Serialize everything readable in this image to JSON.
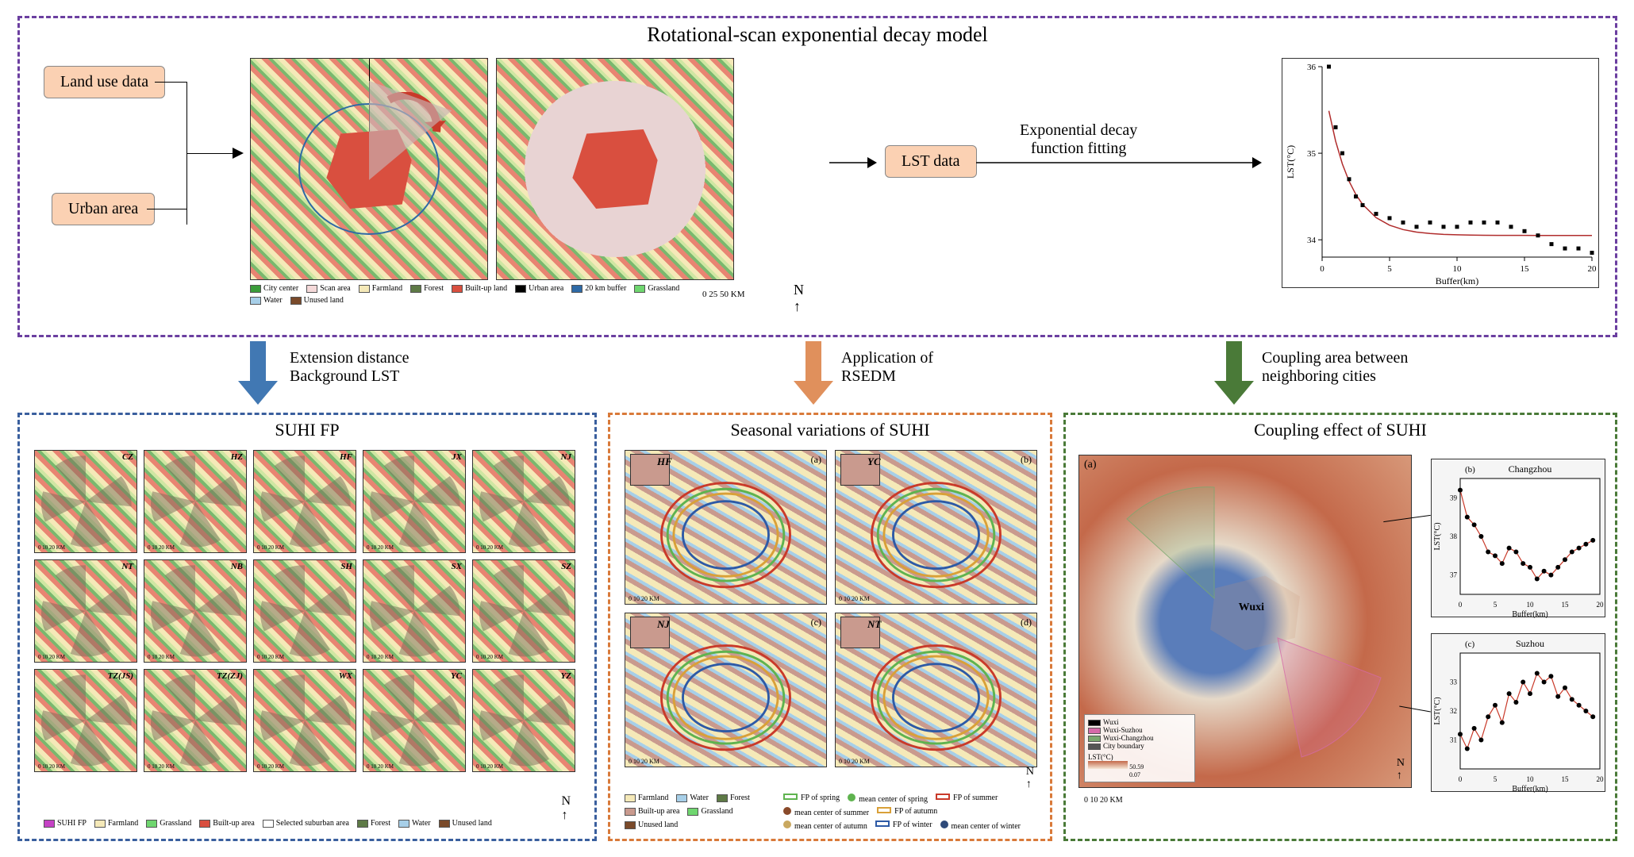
{
  "topPanel": {
    "title": "Rotational-scan exponential decay model",
    "border_color": "#6b3fa0",
    "inputs": {
      "landuse": "Land use data",
      "urban": "Urban area"
    },
    "lst_box": "LST data",
    "fitting_label": "Exponential decay\nfunction fitting",
    "maps_legend": {
      "items": [
        "City center",
        "Scan area",
        "Farmland",
        "Forest",
        "Built-up land",
        "Urban area",
        "20 km buffer",
        "Grassland",
        "Water",
        "Unused land"
      ],
      "colors": [
        "#3a9c3a",
        "#f5d9d9",
        "#f5e9b8",
        "#5e7a46",
        "#d94f3f",
        "#000000",
        "#2e6aa6",
        "#6fd66f",
        "#a7cfe8",
        "#7a4a2a"
      ],
      "scale": "0    25    50 KM"
    },
    "chart": {
      "type": "scatter-line",
      "xlabel": "Buffer(km)",
      "ylabel": "LST(°C)",
      "xlim": [
        0,
        20
      ],
      "ylim": [
        33.8,
        36.0
      ],
      "xticks": [
        0,
        5,
        10,
        15,
        20
      ],
      "yticks": [
        34,
        35,
        36
      ],
      "points_x": [
        0.5,
        1,
        1.5,
        2,
        2.5,
        3,
        4,
        5,
        6,
        7,
        8,
        9,
        10,
        11,
        12,
        13,
        14,
        15,
        16,
        17,
        18,
        19,
        20
      ],
      "points_y": [
        36.0,
        35.3,
        35.0,
        34.7,
        34.5,
        34.4,
        34.3,
        34.25,
        34.2,
        34.15,
        34.2,
        34.15,
        34.15,
        34.2,
        34.2,
        34.2,
        34.15,
        34.1,
        34.05,
        33.95,
        33.9,
        33.9,
        33.85
      ],
      "marker_color": "#000000",
      "marker_size": 5,
      "marker_style": "square",
      "line_color": "#b02c2c",
      "line_width": 1.5,
      "background_color": "#ffffff",
      "label_fontsize": 12
    }
  },
  "arrows": {
    "left": {
      "color": "#4178b3",
      "labels": [
        "Extension distance",
        "Background LST"
      ]
    },
    "mid": {
      "color": "#e0905c",
      "labels": [
        "Application of",
        "RSEDM"
      ]
    },
    "right": {
      "color": "#4a7a38",
      "labels": [
        "Coupling area between",
        "neighboring cities"
      ]
    }
  },
  "suhiFP": {
    "title": "SUHI FP",
    "border_color": "#3a5f9e",
    "cities": [
      "CZ",
      "HZ",
      "HF",
      "JX",
      "NJ",
      "NT",
      "NB",
      "SH",
      "SX",
      "SZ",
      "TZ(JS)",
      "TZ(ZJ)",
      "WX",
      "YC",
      "YZ"
    ],
    "thumb_scale": "0  10  20 KM",
    "legend": {
      "items": [
        "SUHI FP",
        "Farmland",
        "Grassland",
        "Built-up area",
        "Selected suburban area",
        "Forest",
        "Water",
        "Unused land"
      ],
      "colors": [
        "#c542c5",
        "#f5e9b8",
        "#6fd66f",
        "#d94f3f",
        "#ffffff",
        "#5e7a46",
        "#a7cfe8",
        "#7a4a2a"
      ]
    }
  },
  "seasonal": {
    "title": "Seasonal variations of SUHI",
    "border_color": "#d97a3a",
    "cities": [
      "HF",
      "YC",
      "NJ",
      "NT"
    ],
    "labels": [
      "(a)",
      "(b)",
      "(c)",
      "(d)"
    ],
    "scale": "0  10  20 KM",
    "legend_left": {
      "items": [
        "Farmland",
        "Water",
        "Forest",
        "Built-up area",
        "Grassland",
        "Unused land"
      ],
      "colors": [
        "#f5e9b8",
        "#a7cfe8",
        "#5e7a46",
        "#c99a8e",
        "#6fd66f",
        "#7a4a2a"
      ]
    },
    "legend_right": {
      "items": [
        "FP of spring",
        "mean center of spring",
        "FP of summer",
        "mean center of summer",
        "FP of autumn",
        "mean center of autumn",
        "FP of winter",
        "mean center of winter"
      ],
      "colors": [
        "#5fb34f",
        "#5fb34f",
        "#c93a2a",
        "#8a4a2a",
        "#d9a038",
        "#c9a860",
        "#2e5aa6",
        "#2e4a7a"
      ]
    },
    "fp_line_colors": {
      "spring": "#5fb34f",
      "summer": "#c93a2a",
      "autumn": "#d9a038",
      "winter": "#2e5aa6"
    }
  },
  "coupling": {
    "title": "Coupling effect of SUHI",
    "border_color": "#4a7a38",
    "map_label": "(a)",
    "center_city": "Wuxi",
    "legend": {
      "items": [
        "Wuxi",
        "Wuxi-Suzhou",
        "Wuxi-Changzhou",
        "City boundary"
      ],
      "colors": [
        "#000000",
        "#d66aa8",
        "#7aa86e",
        "#555555"
      ]
    },
    "lst_scale": {
      "label": "LST(°C)",
      "high": "50.59",
      "low": "0.07"
    },
    "scale": "0    10    20 KM",
    "chart_b": {
      "title": "Changzhou",
      "label": "(b)",
      "xlabel": "Buffer(km)",
      "ylabel": "LST(°C)",
      "xlim": [
        0,
        20
      ],
      "ylim": [
        36.5,
        39.5
      ],
      "xticks": [
        0,
        5,
        10,
        15,
        20
      ],
      "yticks": [
        37,
        38,
        39
      ],
      "x": [
        0,
        1,
        2,
        3,
        4,
        5,
        6,
        7,
        8,
        9,
        10,
        11,
        12,
        13,
        14,
        15,
        16,
        17,
        18,
        19
      ],
      "y": [
        39.2,
        38.5,
        38.3,
        38.0,
        37.6,
        37.5,
        37.3,
        37.7,
        37.6,
        37.3,
        37.2,
        36.9,
        37.1,
        37.0,
        37.2,
        37.4,
        37.6,
        37.7,
        37.8,
        37.9
      ],
      "marker_color": "#000000",
      "marker_size": 3,
      "line_color": "#c93a2a",
      "line_width": 1.2
    },
    "chart_c": {
      "title": "Suzhou",
      "label": "(c)",
      "xlabel": "Buffer(km)",
      "ylabel": "LST(°C)",
      "xlim": [
        0,
        20
      ],
      "ylim": [
        30,
        34
      ],
      "xticks": [
        0,
        5,
        10,
        15,
        20
      ],
      "yticks": [
        31,
        32,
        33
      ],
      "x": [
        0,
        1,
        2,
        3,
        4,
        5,
        6,
        7,
        8,
        9,
        10,
        11,
        12,
        13,
        14,
        15,
        16,
        17,
        18,
        19
      ],
      "y": [
        31.2,
        30.7,
        31.4,
        31.0,
        31.8,
        32.2,
        31.6,
        32.6,
        32.3,
        33.0,
        32.6,
        33.3,
        33.0,
        33.2,
        32.5,
        32.8,
        32.4,
        32.2,
        32.0,
        31.8
      ],
      "marker_color": "#000000",
      "marker_size": 3,
      "line_color": "#c93a2a",
      "line_width": 1.2
    }
  },
  "landuse_palette": {
    "farmland": "#f5e9b8",
    "forest": "#5e7a46",
    "grassland": "#6fd66f",
    "water": "#a7cfe8",
    "builtup": "#d94f3f",
    "unused": "#7a4a2a",
    "scan": "#e8d3d3"
  }
}
